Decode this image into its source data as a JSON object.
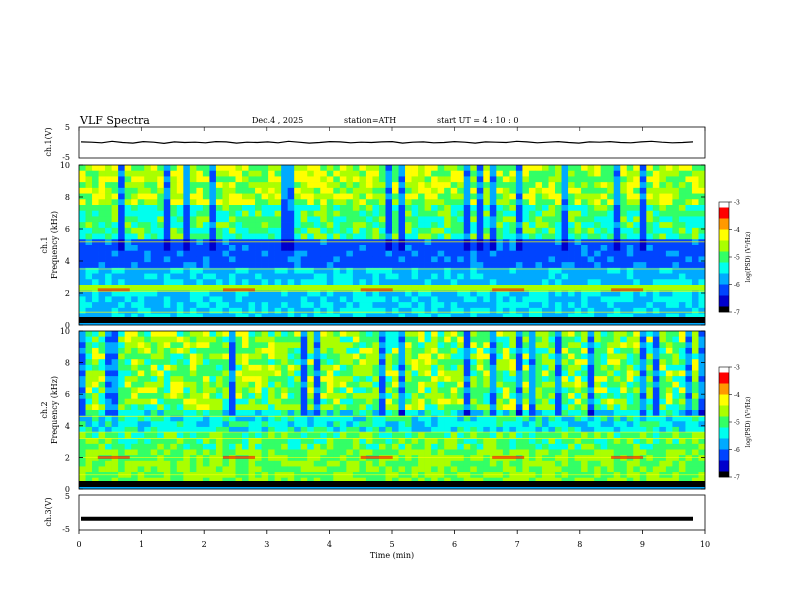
{
  "header": {
    "title": "VLF  Spectra",
    "date": "Dec.4  , 2025",
    "station": "station=ATH",
    "start": "start  UT  =   4  : 10 : 0"
  },
  "chart_data": [
    {
      "type": "line",
      "id": "ch1-waveform",
      "ylabel": "ch.1(V)",
      "ylim": [
        -5,
        5
      ],
      "yticks": [
        "5",
        "-5"
      ],
      "xlim": [
        0,
        10
      ],
      "series_color": "#000000",
      "values": [
        0.2,
        0.1,
        -0.1,
        0.4,
        0.0,
        -0.2,
        0.3,
        0.1,
        -0.3,
        0.2,
        0.0,
        0.1,
        -0.1,
        0.3,
        0.2,
        -0.2,
        0.1,
        0.0,
        0.2,
        -0.1,
        0.4,
        0.1,
        -0.2,
        0.0,
        0.3,
        0.2,
        -0.1,
        0.1,
        0.0,
        0.2,
        0.3,
        -0.2,
        0.1,
        0.2,
        -0.1,
        0.0,
        0.3,
        0.1,
        -0.2,
        0.2,
        0.1,
        0.0,
        0.4,
        0.2,
        -0.1,
        0.1,
        0.3,
        0.0,
        -0.2,
        0.2,
        0.1,
        0.3,
        0.0,
        -0.1,
        0.2,
        0.4,
        0.1,
        -0.1,
        0.0,
        0.2
      ]
    },
    {
      "type": "heatmap",
      "id": "ch1-spectrogram",
      "ylabel": "ch.1\nFrequency (kHz)",
      "ylim": [
        0,
        10
      ],
      "yticks": [
        "0",
        "2",
        "4",
        "6",
        "8",
        "10"
      ],
      "xlim": [
        0,
        10
      ],
      "colorbar": {
        "label": "log(PSD) (V²/Hz)",
        "range": [
          -7,
          -3
        ],
        "ticks": [
          "-3",
          "-4",
          "-5",
          "-6",
          "-7"
        ]
      }
    },
    {
      "type": "heatmap",
      "id": "ch2-spectrogram",
      "ylabel": "ch.2\nFrequency (kHz)",
      "ylim": [
        0,
        10
      ],
      "yticks": [
        "0",
        "2",
        "4",
        "6",
        "8",
        "10"
      ],
      "xlim": [
        0,
        10
      ],
      "colorbar": {
        "label": "log(PSD) (V²/Hz)",
        "range": [
          -7,
          -3
        ],
        "ticks": [
          "-3",
          "-4",
          "-5",
          "-6",
          "-7"
        ]
      }
    },
    {
      "type": "line",
      "id": "ch3-waveform",
      "ylabel": "ch.3(V)",
      "ylim": [
        -5,
        5
      ],
      "yticks": [
        "5",
        "-5"
      ],
      "xlim": [
        0,
        10
      ],
      "series_color": "#000000",
      "values": [
        -1.8,
        -1.8,
        -1.8,
        -1.8,
        -1.8,
        -1.8,
        -1.8,
        -1.8,
        -1.8,
        -1.8,
        -1.8,
        -1.8,
        -1.8,
        -1.8,
        -1.8,
        -1.8,
        -1.8,
        -1.8,
        -1.8,
        -1.8
      ]
    }
  ],
  "xaxis": {
    "label": "Time  (min)",
    "ticks": [
      "0",
      "1",
      "2",
      "3",
      "4",
      "5",
      "6",
      "7",
      "8",
      "9",
      "10"
    ],
    "range": [
      0,
      10
    ]
  },
  "colormap": [
    "#000000",
    "#0000cc",
    "#0044ff",
    "#00aaff",
    "#00ffee",
    "#33ff66",
    "#aaff00",
    "#ffff00",
    "#ff9900",
    "#ff0000",
    "#ffffff"
  ]
}
